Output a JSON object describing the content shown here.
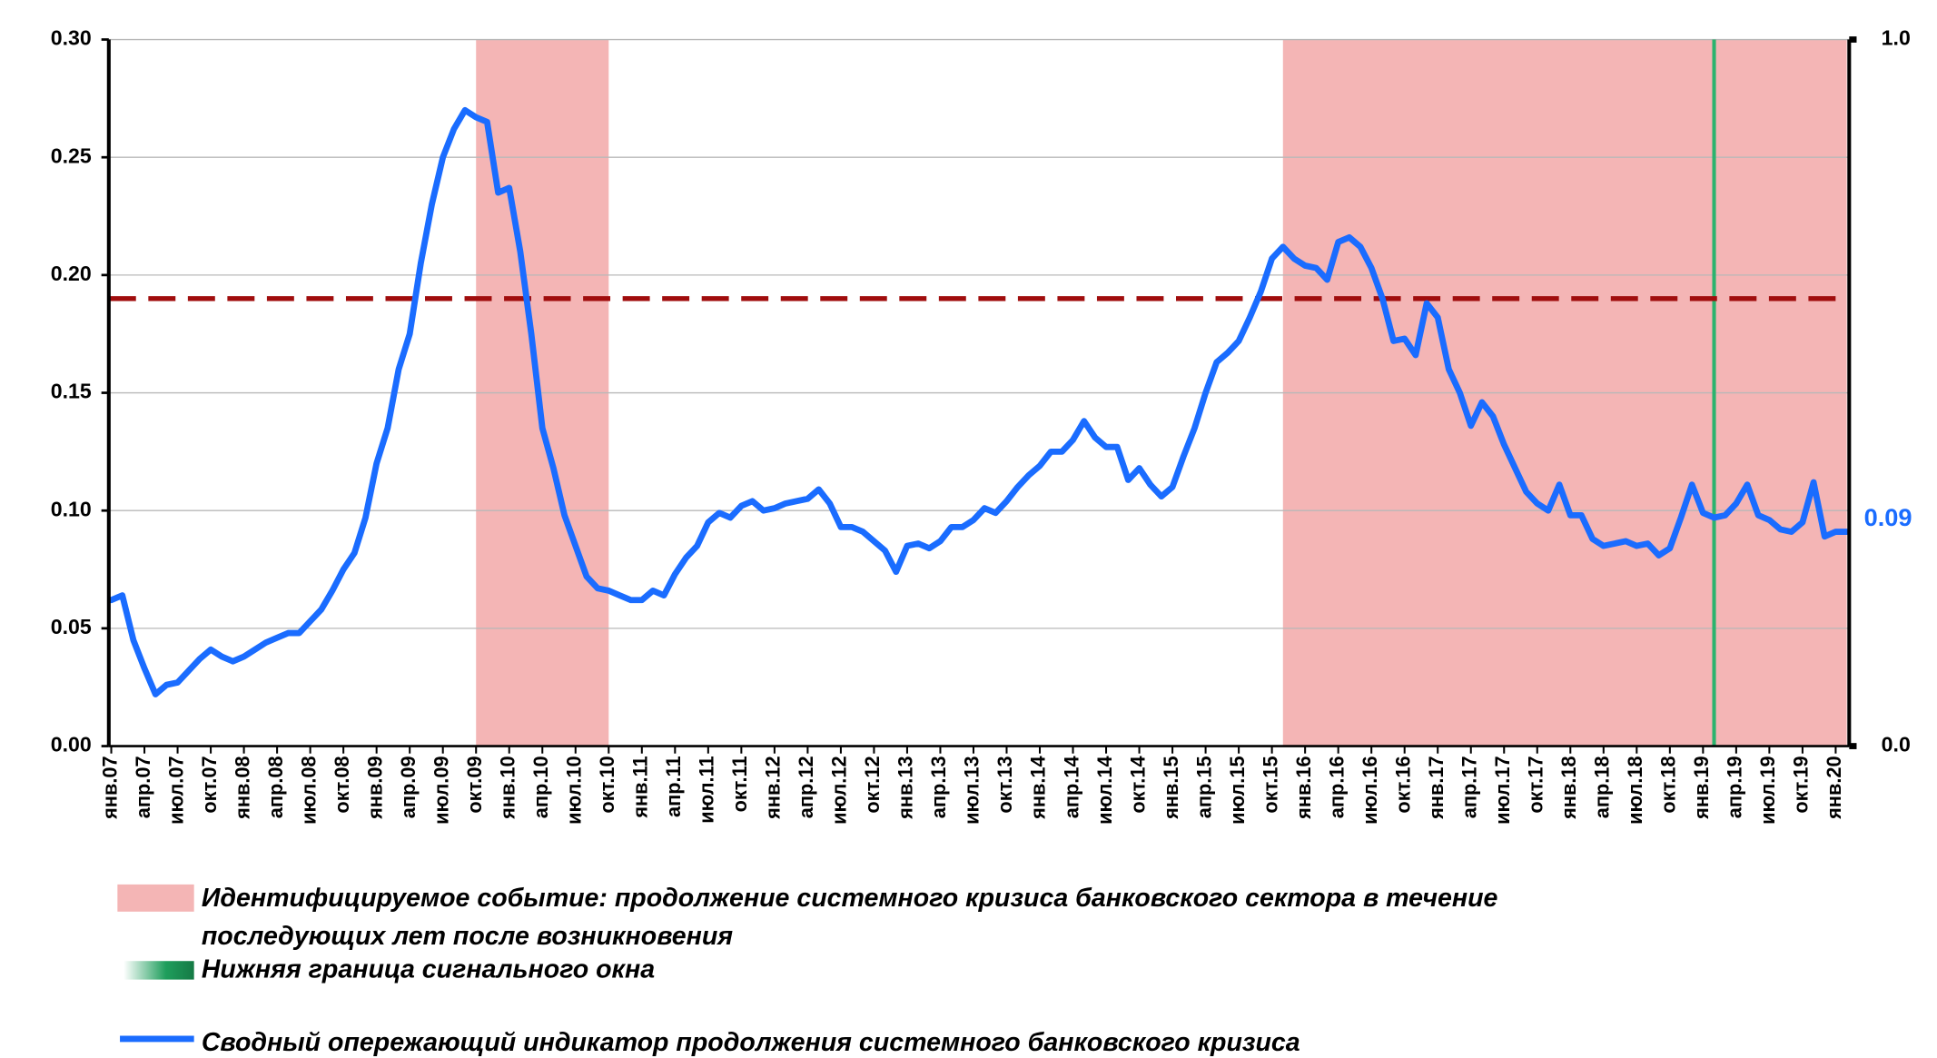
{
  "chart_data": {
    "type": "line",
    "categories": [
      "янв.07",
      null,
      null,
      "апр.07",
      null,
      null,
      "июл.07",
      null,
      null,
      "окт.07",
      null,
      null,
      "янв.08",
      null,
      null,
      "апр.08",
      null,
      null,
      "июл.08",
      null,
      null,
      "окт.08",
      null,
      null,
      "янв.09",
      null,
      null,
      "апр.09",
      null,
      null,
      "июл.09",
      null,
      null,
      "окт.09",
      null,
      null,
      "янв.10",
      null,
      null,
      "апр.10",
      null,
      null,
      "июл.10",
      null,
      null,
      "окт.10",
      null,
      null,
      "янв.11",
      null,
      null,
      "апр.11",
      null,
      null,
      "июл.11",
      null,
      null,
      "окт.11",
      null,
      null,
      "янв.12",
      null,
      null,
      "апр.12",
      null,
      null,
      "июл.12",
      null,
      null,
      "окт.12",
      null,
      null,
      "янв.13",
      null,
      null,
      "апр.13",
      null,
      null,
      "июл.13",
      null,
      null,
      "окт.13",
      null,
      null,
      "янв.14",
      null,
      null,
      "апр.14",
      null,
      null,
      "июл.14",
      null,
      null,
      "окт.14",
      null,
      null,
      "янв.15",
      null,
      null,
      "апр.15",
      null,
      null,
      "июл.15",
      null,
      null,
      "окт.15",
      null,
      null,
      "янв.16",
      null,
      null,
      "апр.16",
      null,
      null,
      "июл.16",
      null,
      null,
      "окт.16",
      null,
      null,
      "янв.17",
      null,
      null,
      "апр.17",
      null,
      null,
      "июл.17",
      null,
      null,
      "окт.17",
      null,
      null,
      "янв.18",
      null,
      null,
      "апр.18",
      null,
      null,
      "июл.18",
      null,
      null,
      "окт.18",
      null,
      null,
      "янв.19",
      null,
      null,
      "апр.19",
      null,
      null,
      "июл.19",
      null,
      null,
      "окт.19",
      null,
      null,
      "янв.20",
      null
    ],
    "series": [
      {
        "name": "Сводный опережающий индикатор продолжения системного банковского кризиса",
        "color": "#1a6cff",
        "values": [
          0.062,
          0.064,
          0.045,
          0.033,
          0.022,
          0.026,
          0.027,
          0.032,
          0.037,
          0.041,
          0.038,
          0.036,
          0.038,
          0.041,
          0.044,
          0.046,
          0.048,
          0.048,
          0.053,
          0.058,
          0.066,
          0.075,
          0.082,
          0.097,
          0.12,
          0.135,
          0.16,
          0.175,
          0.205,
          0.23,
          0.25,
          0.262,
          0.27,
          0.267,
          0.265,
          0.235,
          0.237,
          0.21,
          0.175,
          0.135,
          0.118,
          0.098,
          0.085,
          0.072,
          0.067,
          0.066,
          0.064,
          0.062,
          0.062,
          0.066,
          0.064,
          0.073,
          0.08,
          0.085,
          0.095,
          0.099,
          0.097,
          0.102,
          0.104,
          0.1,
          0.101,
          0.103,
          0.104,
          0.105,
          0.109,
          0.103,
          0.093,
          0.093,
          0.091,
          0.087,
          0.083,
          0.074,
          0.085,
          0.086,
          0.084,
          0.087,
          0.093,
          0.093,
          0.096,
          0.101,
          0.099,
          0.104,
          0.11,
          0.115,
          0.119,
          0.125,
          0.125,
          0.13,
          0.138,
          0.131,
          0.127,
          0.127,
          0.113,
          0.118,
          0.111,
          0.106,
          0.11,
          0.123,
          0.135,
          0.15,
          0.163,
          0.167,
          0.172,
          0.182,
          0.193,
          0.207,
          0.212,
          0.207,
          0.204,
          0.203,
          0.198,
          0.214,
          0.216,
          0.212,
          0.203,
          0.19,
          0.172,
          0.173,
          0.166,
          0.188,
          0.182,
          0.16,
          0.15,
          0.136,
          0.146,
          0.14,
          0.128,
          0.118,
          0.108,
          0.103,
          0.1,
          0.111,
          0.098,
          0.098,
          0.088,
          0.085,
          0.086,
          0.087,
          0.085,
          0.086,
          0.081,
          0.084,
          0.097,
          0.111,
          0.099,
          0.097,
          0.098,
          0.103,
          0.111,
          0.098,
          0.096,
          0.092,
          0.091,
          0.095,
          0.112,
          0.089,
          0.091,
          0.091
        ],
        "end_label": "0.09"
      }
    ],
    "ylim": [
      0,
      0.3
    ],
    "yticks": [
      {
        "value": 0,
        "label": "0.00"
      },
      {
        "value": 0.05,
        "label": "0.05"
      },
      {
        "value": 0.1,
        "label": "0.10"
      },
      {
        "value": 0.15,
        "label": "0.15"
      },
      {
        "value": 0.2,
        "label": "0.20"
      },
      {
        "value": 0.25,
        "label": "0.25"
      },
      {
        "value": 0.3,
        "label": "0.30"
      }
    ],
    "y2lim": [
      0,
      1
    ],
    "y2ticks": [
      {
        "value": 0,
        "label": "0.0"
      },
      {
        "value": 1,
        "label": "1.0"
      }
    ],
    "grid": true,
    "threshold": {
      "value": 0.19,
      "color": "#a00d0d"
    },
    "shaded_regions": {
      "color": "#f4b5b5",
      "ranges": [
        {
          "from": 33,
          "to": 45
        },
        {
          "from": 106,
          "to": 157
        }
      ],
      "label": [
        "Идентифицируемое событие: продолжение системного кризиса банковского сектора в течение",
        "последующих лет после возникновения"
      ]
    },
    "signal_window": {
      "index": 145,
      "color": "#2bb36e",
      "label": "Нижняя граница сигнального окна"
    }
  }
}
